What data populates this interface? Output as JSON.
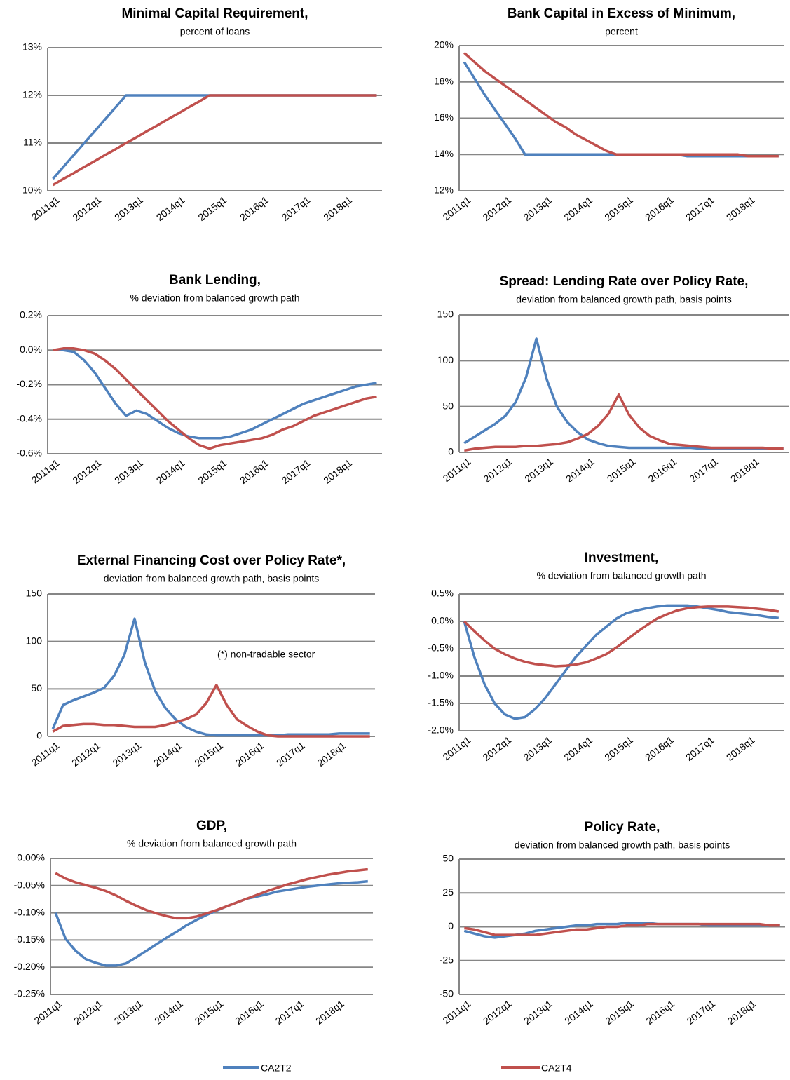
{
  "legend": {
    "series": [
      {
        "name": "CA2T2",
        "color": "#4f81bd"
      },
      {
        "name": "CA2T4",
        "color": "#c0504d"
      }
    ]
  },
  "chart_data": [
    {
      "type": "line",
      "title": "Minimal Capital Requirement,",
      "subtitle": "percent of loans",
      "categories": [
        "2011q1",
        null,
        null,
        null,
        "2012q1",
        null,
        null,
        null,
        "2013q1",
        null,
        null,
        null,
        "2014q1",
        null,
        null,
        null,
        "2015q1",
        null,
        null,
        null,
        "2016q1",
        null,
        null,
        null,
        "2017q1",
        null,
        null,
        null,
        "2018q1",
        null,
        null,
        null
      ],
      "ylim": [
        10,
        13
      ],
      "yticks": [
        {
          "value": 10,
          "label": "10%"
        },
        {
          "value": 11,
          "label": "11%"
        },
        {
          "value": 12,
          "label": "12%"
        },
        {
          "value": 13,
          "label": "13%"
        }
      ],
      "grid": true,
      "series": [
        {
          "values": [
            10.25,
            10.5,
            10.75,
            11.0,
            11.25,
            11.5,
            11.75,
            12,
            12,
            12,
            12,
            12,
            12,
            12,
            12,
            12,
            12,
            12,
            12,
            12,
            12,
            12,
            12,
            12,
            12,
            12,
            12,
            12,
            12,
            12,
            12,
            12
          ]
        },
        {
          "values": [
            10.12,
            10.25,
            10.37,
            10.5,
            10.62,
            10.75,
            10.87,
            11.0,
            11.12,
            11.25,
            11.37,
            11.5,
            11.62,
            11.75,
            11.87,
            12,
            12,
            12,
            12,
            12,
            12,
            12,
            12,
            12,
            12,
            12,
            12,
            12,
            12,
            12,
            12,
            12
          ]
        }
      ]
    },
    {
      "type": "line",
      "title": "Bank Capital in Excess of Minimum,",
      "subtitle": "percent",
      "categories": [
        "2011q1",
        null,
        null,
        null,
        "2012q1",
        null,
        null,
        null,
        "2013q1",
        null,
        null,
        null,
        "2014q1",
        null,
        null,
        null,
        "2015q1",
        null,
        null,
        null,
        "2016q1",
        null,
        null,
        null,
        "2017q1",
        null,
        null,
        null,
        "2018q1",
        null,
        null,
        null
      ],
      "ylim": [
        12,
        20
      ],
      "yticks": [
        {
          "value": 12,
          "label": "12%"
        },
        {
          "value": 14,
          "label": "14%"
        },
        {
          "value": 16,
          "label": "16%"
        },
        {
          "value": 18,
          "label": "18%"
        },
        {
          "value": 20,
          "label": "20%"
        }
      ],
      "grid": true,
      "series": [
        {
          "values": [
            19.1,
            18.2,
            17.3,
            16.5,
            15.7,
            14.9,
            14.0,
            14,
            14,
            14,
            14,
            14,
            14,
            14,
            14,
            14,
            14,
            14,
            14,
            14,
            14,
            14,
            13.9,
            13.9,
            13.9,
            13.9,
            13.9,
            13.9,
            13.9,
            13.9,
            13.9,
            13.9
          ]
        },
        {
          "values": [
            19.6,
            19.1,
            18.6,
            18.2,
            17.8,
            17.4,
            17.0,
            16.6,
            16.2,
            15.8,
            15.5,
            15.1,
            14.8,
            14.5,
            14.2,
            14.0,
            14,
            14,
            14,
            14,
            14,
            14,
            14,
            14,
            14,
            14,
            14,
            14,
            13.9,
            13.9,
            13.9,
            13.9
          ]
        }
      ]
    },
    {
      "type": "line",
      "title": "Bank Lending,",
      "subtitle": "% deviation from balanced growth path",
      "categories": [
        "2011q1",
        null,
        null,
        null,
        "2012q1",
        null,
        null,
        null,
        "2013q1",
        null,
        null,
        null,
        "2014q1",
        null,
        null,
        null,
        "2015q1",
        null,
        null,
        null,
        "2016q1",
        null,
        null,
        null,
        "2017q1",
        null,
        null,
        null,
        "2018q1",
        null,
        null,
        null
      ],
      "ylim": [
        -0.6,
        0.2
      ],
      "yticks": [
        {
          "value": -0.6,
          "label": "-0.6%"
        },
        {
          "value": -0.4,
          "label": "-0.4%"
        },
        {
          "value": -0.2,
          "label": "-0.2%"
        },
        {
          "value": 0,
          "label": "0.0%"
        },
        {
          "value": 0.2,
          "label": "0.2%"
        }
      ],
      "grid": true,
      "series": [
        {
          "values": [
            0,
            0,
            -0.01,
            -0.06,
            -0.13,
            -0.22,
            -0.31,
            -0.38,
            -0.35,
            -0.37,
            -0.41,
            -0.45,
            -0.48,
            -0.5,
            -0.51,
            -0.51,
            -0.51,
            -0.5,
            -0.48,
            -0.46,
            -0.43,
            -0.4,
            -0.37,
            -0.34,
            -0.31,
            -0.29,
            -0.27,
            -0.25,
            -0.23,
            -0.21,
            -0.2,
            -0.19
          ]
        },
        {
          "values": [
            0,
            0.01,
            0.01,
            0,
            -0.02,
            -0.06,
            -0.11,
            -0.17,
            -0.23,
            -0.29,
            -0.35,
            -0.41,
            -0.46,
            -0.51,
            -0.55,
            -0.57,
            -0.55,
            -0.54,
            -0.53,
            -0.52,
            -0.51,
            -0.49,
            -0.46,
            -0.44,
            -0.41,
            -0.38,
            -0.36,
            -0.34,
            -0.32,
            -0.3,
            -0.28,
            -0.27
          ]
        }
      ]
    },
    {
      "type": "line",
      "title": "Spread: Lending Rate over Policy Rate,",
      "subtitle": "deviation from balanced growth path, basis points",
      "categories": [
        "2011q1",
        null,
        null,
        null,
        "2012q1",
        null,
        null,
        null,
        "2013q1",
        null,
        null,
        null,
        "2014q1",
        null,
        null,
        null,
        "2015q1",
        null,
        null,
        null,
        "2016q1",
        null,
        null,
        null,
        "2017q1",
        null,
        null,
        null,
        "2018q1",
        null,
        null,
        null
      ],
      "ylim": [
        0,
        150
      ],
      "yticks": [
        0,
        50,
        100,
        150
      ],
      "grid": true,
      "series": [
        {
          "values": [
            10,
            17,
            24,
            31,
            40,
            55,
            82,
            124,
            80,
            50,
            33,
            22,
            14,
            10,
            7,
            6,
            5,
            5,
            5,
            5,
            5,
            5,
            5,
            4,
            4,
            4,
            4,
            4,
            4,
            4,
            4,
            4
          ]
        },
        {
          "values": [
            2,
            4,
            5,
            6,
            6,
            6,
            7,
            7,
            8,
            9,
            11,
            15,
            20,
            29,
            42,
            63,
            41,
            27,
            18,
            13,
            9,
            8,
            7,
            6,
            5,
            5,
            5,
            5,
            5,
            5,
            4,
            4
          ]
        }
      ]
    },
    {
      "type": "line",
      "title": "External Financing Cost over Policy Rate*,",
      "subtitle": "deviation from balanced growth path, basis points",
      "annotation": "(*) non-tradable sector",
      "categories": [
        "2011q1",
        null,
        null,
        null,
        "2012q1",
        null,
        null,
        null,
        "2013q1",
        null,
        null,
        null,
        "2014q1",
        null,
        null,
        null,
        "2015q1",
        null,
        null,
        null,
        "2016q1",
        null,
        null,
        null,
        "2017q1",
        null,
        null,
        null,
        "2018q1",
        null,
        null,
        null
      ],
      "ylim": [
        0,
        150
      ],
      "yticks": [
        0,
        50,
        100,
        150
      ],
      "grid": true,
      "series": [
        {
          "values": [
            8,
            33,
            38,
            42,
            46,
            51,
            64,
            86,
            124,
            78,
            48,
            30,
            18,
            10,
            5,
            2,
            1,
            1,
            1,
            1,
            1,
            1,
            1,
            2,
            2,
            2,
            2,
            2,
            3,
            3,
            3,
            3
          ]
        },
        {
          "values": [
            5,
            11,
            12,
            13,
            13,
            12,
            12,
            11,
            10,
            10,
            10,
            12,
            15,
            18,
            23,
            35,
            54,
            33,
            18,
            11,
            5,
            1,
            0,
            0,
            0,
            0,
            0,
            0,
            0,
            0,
            0,
            0
          ]
        }
      ]
    },
    {
      "type": "line",
      "title": "Investment,",
      "subtitle": "% deviation from balanced growth path",
      "categories": [
        "2011q1",
        null,
        null,
        null,
        "2012q1",
        null,
        null,
        null,
        "2013q1",
        null,
        null,
        null,
        "2014q1",
        null,
        null,
        null,
        "2015q1",
        null,
        null,
        null,
        "2016q1",
        null,
        null,
        null,
        "2017q1",
        null,
        null,
        null,
        "2018q1",
        null,
        null,
        null
      ],
      "ylim": [
        -2.0,
        0.5
      ],
      "yticks": [
        {
          "value": -2.0,
          "label": "-2.0%"
        },
        {
          "value": -1.5,
          "label": "-1.5%"
        },
        {
          "value": -1.0,
          "label": "-1.0%"
        },
        {
          "value": -0.5,
          "label": "-0.5%"
        },
        {
          "value": 0,
          "label": "0.0%"
        },
        {
          "value": 0.5,
          "label": "0.5%"
        }
      ],
      "grid": true,
      "series": [
        {
          "values": [
            0,
            -0.65,
            -1.15,
            -1.5,
            -1.7,
            -1.78,
            -1.75,
            -1.6,
            -1.4,
            -1.15,
            -0.9,
            -0.65,
            -0.45,
            -0.25,
            -0.1,
            0.05,
            0.15,
            0.2,
            0.24,
            0.27,
            0.29,
            0.29,
            0.29,
            0.27,
            0.24,
            0.21,
            0.17,
            0.15,
            0.13,
            0.11,
            0.08,
            0.06
          ]
        },
        {
          "values": [
            0,
            -0.18,
            -0.35,
            -0.5,
            -0.6,
            -0.68,
            -0.74,
            -0.78,
            -0.8,
            -0.82,
            -0.81,
            -0.79,
            -0.75,
            -0.68,
            -0.6,
            -0.48,
            -0.34,
            -0.2,
            -0.07,
            0.05,
            0.13,
            0.2,
            0.24,
            0.26,
            0.27,
            0.27,
            0.27,
            0.26,
            0.25,
            0.23,
            0.21,
            0.18
          ]
        }
      ]
    },
    {
      "type": "line",
      "title": "GDP,",
      "subtitle": "% deviation from balanced growth path",
      "categories": [
        "2011q1",
        null,
        null,
        null,
        "2012q1",
        null,
        null,
        null,
        "2013q1",
        null,
        null,
        null,
        "2014q1",
        null,
        null,
        null,
        "2015q1",
        null,
        null,
        null,
        "2016q1",
        null,
        null,
        null,
        "2017q1",
        null,
        null,
        null,
        "2018q1",
        null,
        null,
        null
      ],
      "ylim": [
        -0.25,
        0
      ],
      "yticks": [
        {
          "value": -0.25,
          "label": "-0.25%"
        },
        {
          "value": -0.2,
          "label": "-0.20%"
        },
        {
          "value": -0.15,
          "label": "-0.15%"
        },
        {
          "value": -0.1,
          "label": "-0.10%"
        },
        {
          "value": -0.05,
          "label": "-0.05%"
        },
        {
          "value": 0,
          "label": "0.00%"
        }
      ],
      "grid": true,
      "series": [
        {
          "values": [
            -0.1,
            -0.148,
            -0.17,
            -0.185,
            -0.192,
            -0.197,
            -0.197,
            -0.193,
            -0.182,
            -0.17,
            -0.158,
            -0.146,
            -0.135,
            -0.123,
            -0.113,
            -0.104,
            -0.096,
            -0.088,
            -0.081,
            -0.074,
            -0.07,
            -0.066,
            -0.061,
            -0.058,
            -0.055,
            -0.052,
            -0.05,
            -0.048,
            -0.046,
            -0.045,
            -0.044,
            -0.042
          ]
        },
        {
          "values": [
            -0.027,
            -0.037,
            -0.044,
            -0.049,
            -0.054,
            -0.06,
            -0.068,
            -0.078,
            -0.087,
            -0.095,
            -0.101,
            -0.106,
            -0.11,
            -0.11,
            -0.107,
            -0.101,
            -0.095,
            -0.088,
            -0.081,
            -0.074,
            -0.067,
            -0.06,
            -0.054,
            -0.048,
            -0.043,
            -0.038,
            -0.034,
            -0.03,
            -0.027,
            -0.024,
            -0.022,
            -0.02
          ]
        }
      ]
    },
    {
      "type": "line",
      "title": "Policy Rate,",
      "subtitle": "deviation from balanced growth path, basis points",
      "categories": [
        "2011q1",
        null,
        null,
        null,
        "2012q1",
        null,
        null,
        null,
        "2013q1",
        null,
        null,
        null,
        "2014q1",
        null,
        null,
        null,
        "2015q1",
        null,
        null,
        null,
        "2016q1",
        null,
        null,
        null,
        "2017q1",
        null,
        null,
        null,
        "2018q1",
        null,
        null,
        null
      ],
      "ylim": [
        -50,
        50
      ],
      "yticks": [
        -50,
        -25,
        0,
        25,
        50
      ],
      "grid": true,
      "series": [
        {
          "values": [
            -3,
            -5,
            -7,
            -8,
            -7,
            -6,
            -5,
            -3,
            -2,
            -1,
            0,
            1,
            1,
            2,
            2,
            2,
            3,
            3,
            3,
            2,
            2,
            2,
            2,
            2,
            1,
            1,
            1,
            1,
            1,
            1,
            1,
            1
          ]
        },
        {
          "values": [
            -1,
            -2,
            -4,
            -6,
            -6,
            -6,
            -6,
            -6,
            -5,
            -4,
            -3,
            -2,
            -2,
            -1,
            0,
            0,
            1,
            1,
            2,
            2,
            2,
            2,
            2,
            2,
            2,
            2,
            2,
            2,
            2,
            2,
            1,
            1
          ]
        }
      ]
    }
  ]
}
